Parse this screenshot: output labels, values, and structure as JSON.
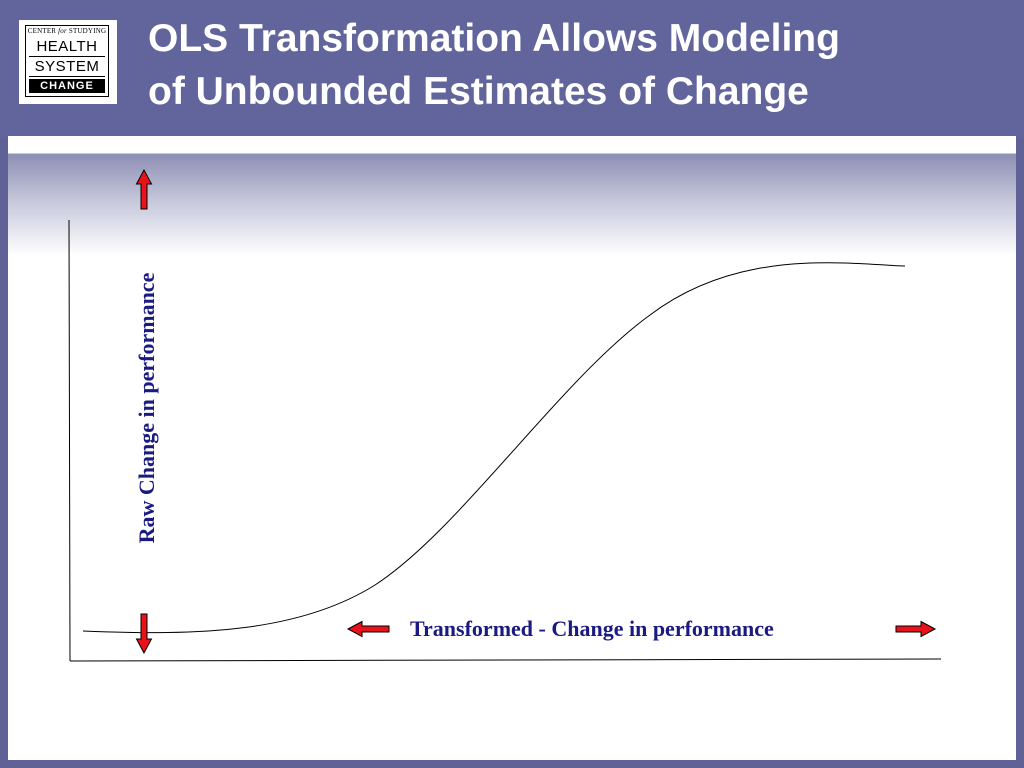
{
  "slide": {
    "title_line1": "OLS Transformation Allows Modeling",
    "title_line2": "of Unbounded Estimates of Change"
  },
  "logo": {
    "top_prefix": "CENTER ",
    "top_italic": "for",
    "top_suffix": " STUDYING",
    "line1": "HEALTH",
    "line2": "SYSTEM",
    "line3": "CHANGE"
  },
  "diagram": {
    "y_label": "Raw Change in performance",
    "x_label": "Transformed - Change in performance",
    "curve_shape": "sigmoid",
    "arrow_color": "#e8121b",
    "label_color": "#1a1a80"
  }
}
